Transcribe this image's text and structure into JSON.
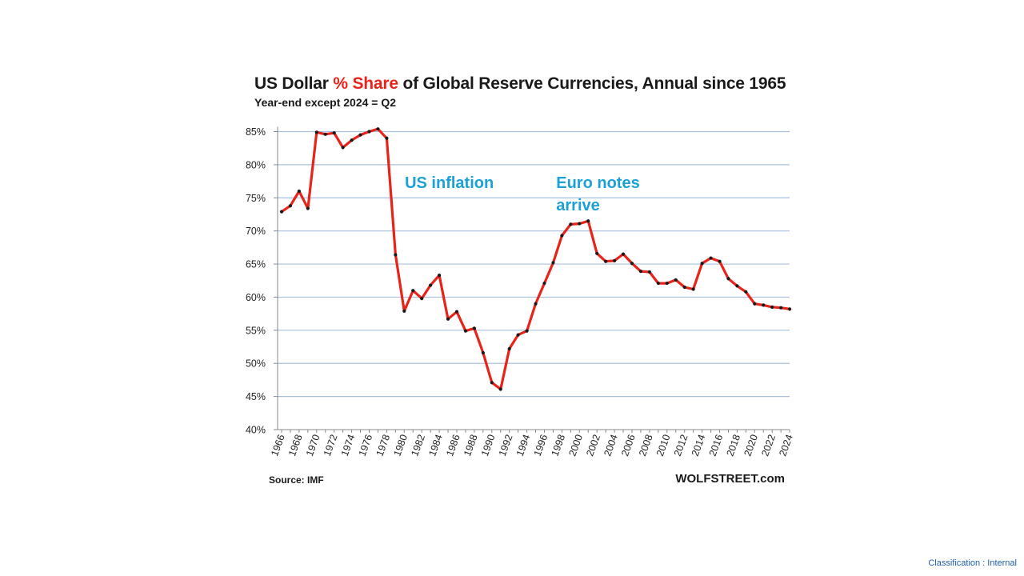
{
  "title_prefix": "US Dollar ",
  "title_highlight": "% Share",
  "title_suffix": " of Global Reserve Currencies, Annual since 1965",
  "subtitle": "Year-end except 2024 = Q2",
  "source": "Source: IMF",
  "credit": "WOLFSTREET.com",
  "classification": "Classification : Internal",
  "colors": {
    "line": "#e8231a",
    "marker": "#1a1a1a",
    "grid": "#a9c0de",
    "annotation": "#1ba1d6",
    "title_highlight": "#e8231a"
  },
  "chart_data": {
    "type": "line",
    "title": "US Dollar % Share of Global Reserve Currencies, Annual since 1965",
    "subtitle": "Year-end except 2024 = Q2",
    "ylim": [
      40,
      85
    ],
    "yticks": [
      40,
      45,
      50,
      55,
      60,
      65,
      70,
      75,
      80,
      85
    ],
    "ytick_labels": [
      "40%",
      "45%",
      "50%",
      "55%",
      "60%",
      "65%",
      "70%",
      "75%",
      "80%",
      "85%"
    ],
    "xtick_labels": [
      "1966",
      "1968",
      "1970",
      "1972",
      "1974",
      "1976",
      "1978",
      "1980",
      "1982",
      "1984",
      "1986",
      "1988",
      "1990",
      "1992",
      "1994",
      "1996",
      "1998",
      "2000",
      "2002",
      "2004",
      "2006",
      "2008",
      "2010",
      "2012",
      "2014",
      "2016",
      "2018",
      "2020",
      "2022",
      "2024"
    ],
    "grid": true,
    "legend": "none",
    "x": [
      1966,
      1967,
      1968,
      1969,
      1970,
      1971,
      1972,
      1973,
      1974,
      1975,
      1976,
      1977,
      1978,
      1979,
      1980,
      1981,
      1982,
      1983,
      1984,
      1985,
      1986,
      1987,
      1988,
      1989,
      1990,
      1991,
      1992,
      1993,
      1994,
      1995,
      1996,
      1997,
      1998,
      1999,
      2000,
      2001,
      2002,
      2003,
      2004,
      2005,
      2006,
      2007,
      2008,
      2009,
      2010,
      2011,
      2012,
      2013,
      2014,
      2015,
      2016,
      2017,
      2018,
      2019,
      2020,
      2021,
      2022,
      2023,
      2024
    ],
    "values": [
      72.9,
      73.8,
      76.0,
      73.4,
      84.9,
      84.6,
      84.8,
      82.6,
      83.7,
      84.5,
      85.0,
      85.4,
      84.0,
      66.4,
      57.9,
      61.0,
      59.8,
      61.8,
      63.3,
      56.7,
      57.8,
      54.9,
      55.3,
      51.6,
      47.1,
      46.1,
      52.2,
      54.3,
      54.9,
      59.0,
      62.1,
      65.2,
      69.3,
      71.0,
      71.1,
      71.5,
      66.6,
      65.4,
      65.5,
      66.5,
      65.1,
      63.9,
      63.8,
      62.1,
      62.1,
      62.6,
      61.5,
      61.2,
      65.1,
      65.9,
      65.4,
      62.8,
      61.7,
      60.8,
      59.0,
      58.8,
      58.5,
      58.4,
      58.2
    ],
    "annotations": [
      {
        "lines": [
          "US inflation"
        ],
        "x": 1984,
        "y": 76.5
      },
      {
        "lines": [
          "Euro notes",
          "arrive"
        ],
        "x": 2001,
        "y": 76.5
      }
    ]
  }
}
